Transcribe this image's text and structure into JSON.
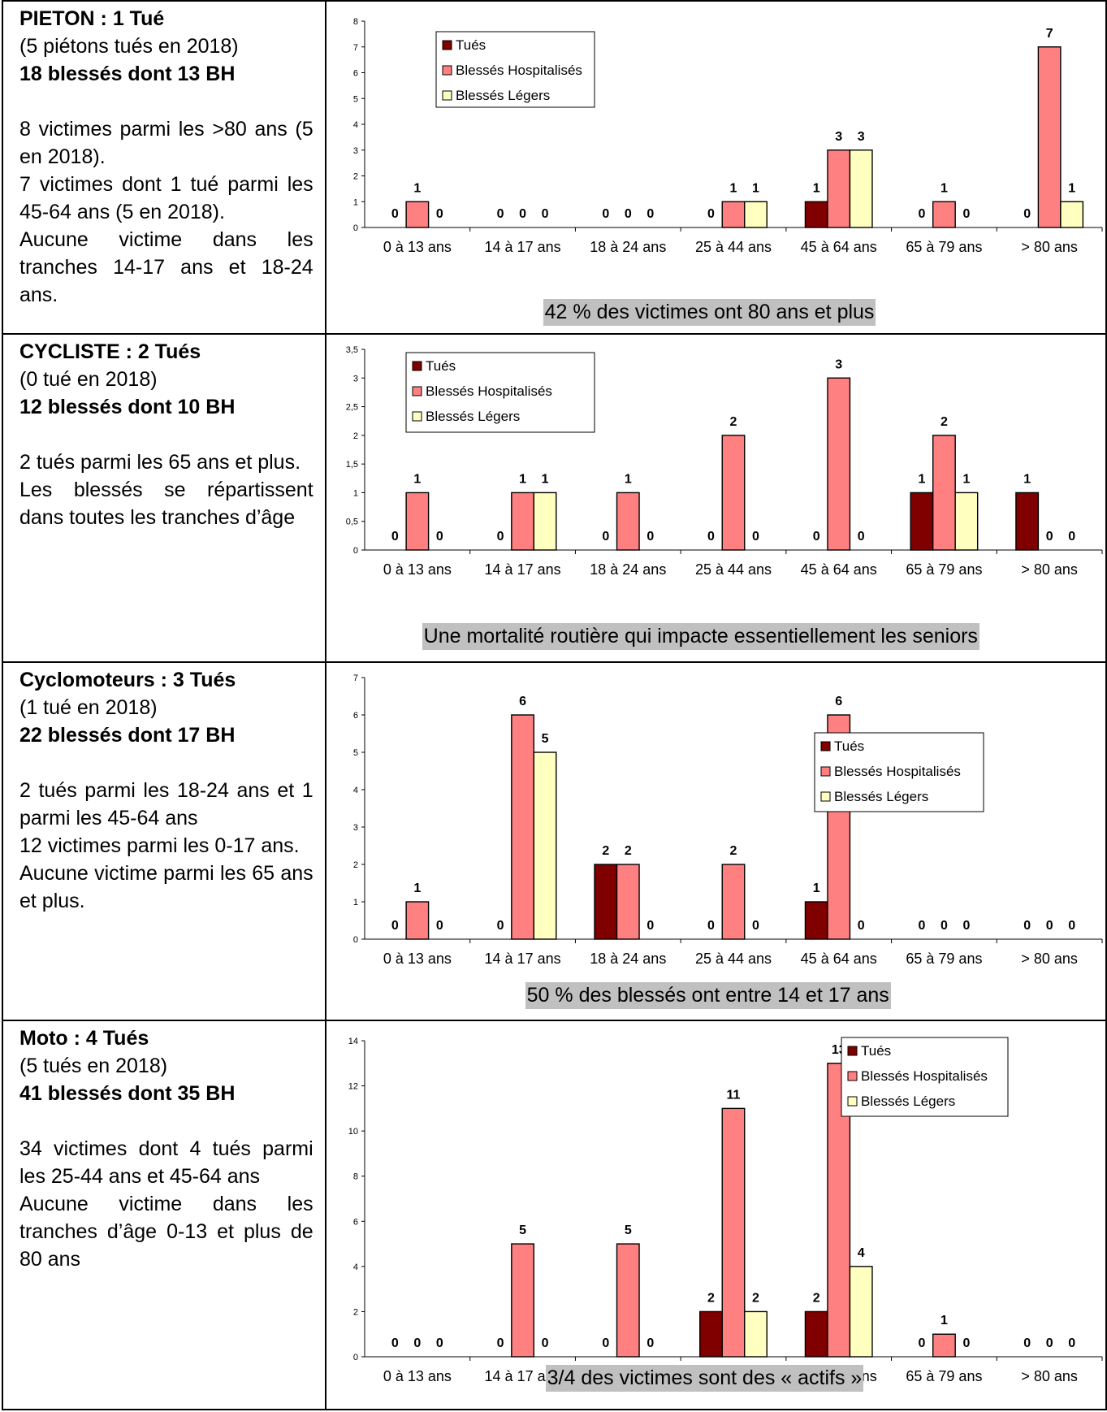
{
  "categories": [
    "0 à 13 ans",
    "14 à 17 ans",
    "18 à 24 ans",
    "25 à 44 ans",
    "45 à 64 ans",
    "65 à 79 ans",
    "> 80 ans"
  ],
  "legend": [
    "Tués",
    "Blessés Hospitalisés",
    "Blessés Légers"
  ],
  "colors": {
    "tues": "#800000",
    "bh": "#ff8080",
    "bl": "#ffffc0"
  },
  "panels": [
    {
      "title": "PIETON : 1 Tué",
      "previous": "(5 piétons tués en 2018)",
      "injured": "18 blessés dont 13 BH",
      "desc": [
        "8 victimes parmi les >80 ans (5 en 2018).",
        "7 victimes dont 1 tué parmi les 45-64 ans (5 en 2018).",
        "Aucune victime dans les tranches 14-17 ans et 18-24 ans."
      ],
      "caption": "42 % des victimes ont 80 ans et plus"
    },
    {
      "title": "CYCLISTE : 2 Tués",
      "previous": "(0 tué en 2018)",
      "injured": "12 blessés dont 10 BH",
      "desc": [
        "2 tués parmi les 65 ans et plus.",
        "Les blessés se répartissent dans toutes les tranches d’âge"
      ],
      "caption": "Une mortalité routière qui impacte essentiellement les seniors"
    },
    {
      "title": "Cyclomoteurs : 3 Tués",
      "previous": "(1 tué en 2018)",
      "injured": "22 blessés dont 17 BH",
      "desc": [
        "2 tués parmi les 18-24  ans et 1 parmi les 45-64 ans",
        "12 victimes parmi les 0-17 ans.",
        "Aucune victime parmi les 65 ans et plus."
      ],
      "caption": "50 % des blessés ont entre 14 et 17 ans"
    },
    {
      "title": "Moto : 4 Tués",
      "previous": "(5 tués en 2018)",
      "injured": "41 blessés dont 35 BH",
      "desc": [
        "34 victimes dont 4 tués parmi les 25-44 ans et 45-64 ans",
        "Aucune victime dans les tranches d’âge 0-13 et plus de 80 ans"
      ],
      "caption": "3/4 des victimes sont des « actifs »"
    }
  ],
  "chart_data": [
    {
      "type": "bar",
      "categories": [
        "0 à 13 ans",
        "14 à 17 ans",
        "18 à 24 ans",
        "25 à 44 ans",
        "45 à 64 ans",
        "65 à 79 ans",
        "> 80 ans"
      ],
      "series": [
        {
          "name": "Tués",
          "values": [
            0,
            0,
            0,
            0,
            1,
            0,
            0
          ]
        },
        {
          "name": "Blessés Hospitalisés",
          "values": [
            1,
            0,
            0,
            1,
            3,
            1,
            7
          ]
        },
        {
          "name": "Blessés Légers",
          "values": [
            0,
            0,
            0,
            1,
            3,
            0,
            1
          ]
        }
      ],
      "ylim": [
        0,
        8
      ],
      "yticks": [
        "0",
        "1",
        "2",
        "3",
        "4",
        "5",
        "6",
        "7",
        "8"
      ],
      "legend_position": "top-left",
      "title": "",
      "xlabel": "",
      "ylabel": ""
    },
    {
      "type": "bar",
      "categories": [
        "0 à 13 ans",
        "14 à 17 ans",
        "18 à 24 ans",
        "25 à 44 ans",
        "45 à 64 ans",
        "65 à 79 ans",
        "> 80 ans"
      ],
      "series": [
        {
          "name": "Tués",
          "values": [
            0,
            0,
            0,
            0,
            0,
            1,
            1
          ]
        },
        {
          "name": "Blessés Hospitalisés",
          "values": [
            1,
            1,
            1,
            2,
            3,
            2,
            0
          ]
        },
        {
          "name": "Blessés Légers",
          "values": [
            0,
            1,
            0,
            0,
            0,
            1,
            0
          ]
        }
      ],
      "ylim": [
        0,
        3.5
      ],
      "yticks": [
        "0",
        "0,5",
        "1",
        "1,5",
        "2",
        "2,5",
        "3",
        "3,5"
      ],
      "legend_position": "top-left",
      "title": "",
      "xlabel": "",
      "ylabel": ""
    },
    {
      "type": "bar",
      "categories": [
        "0 à 13 ans",
        "14 à 17 ans",
        "18 à 24 ans",
        "25 à 44 ans",
        "45 à 64 ans",
        "65 à 79 ans",
        "> 80 ans"
      ],
      "series": [
        {
          "name": "Tués",
          "values": [
            0,
            0,
            2,
            0,
            1,
            0,
            0
          ]
        },
        {
          "name": "Blessés Hospitalisés",
          "values": [
            1,
            6,
            2,
            2,
            6,
            0,
            0
          ]
        },
        {
          "name": "Blessés Légers",
          "values": [
            0,
            5,
            0,
            0,
            0,
            0,
            0
          ]
        }
      ],
      "ylim": [
        0,
        7
      ],
      "yticks": [
        "0",
        "1",
        "2",
        "3",
        "4",
        "5",
        "6",
        "7"
      ],
      "legend_position": "top-right",
      "title": "",
      "xlabel": "",
      "ylabel": ""
    },
    {
      "type": "bar",
      "categories": [
        "0 à 13 ans",
        "14 à 17 ans",
        "18 à 24 ans",
        "25 à 44 ans",
        "45 à 64 ans",
        "65 à 79 ans",
        "> 80 ans"
      ],
      "series": [
        {
          "name": "Tués",
          "values": [
            0,
            0,
            0,
            2,
            2,
            0,
            0
          ]
        },
        {
          "name": "Blessés Hospitalisés",
          "values": [
            0,
            5,
            5,
            11,
            13,
            1,
            0
          ]
        },
        {
          "name": "Blessés Légers",
          "values": [
            0,
            0,
            0,
            2,
            4,
            0,
            0
          ]
        }
      ],
      "ylim": [
        0,
        14
      ],
      "yticks": [
        "0",
        "2",
        "4",
        "6",
        "8",
        "10",
        "12",
        "14"
      ],
      "legend_position": "top-right",
      "title": "",
      "xlabel": "",
      "ylabel": ""
    }
  ]
}
